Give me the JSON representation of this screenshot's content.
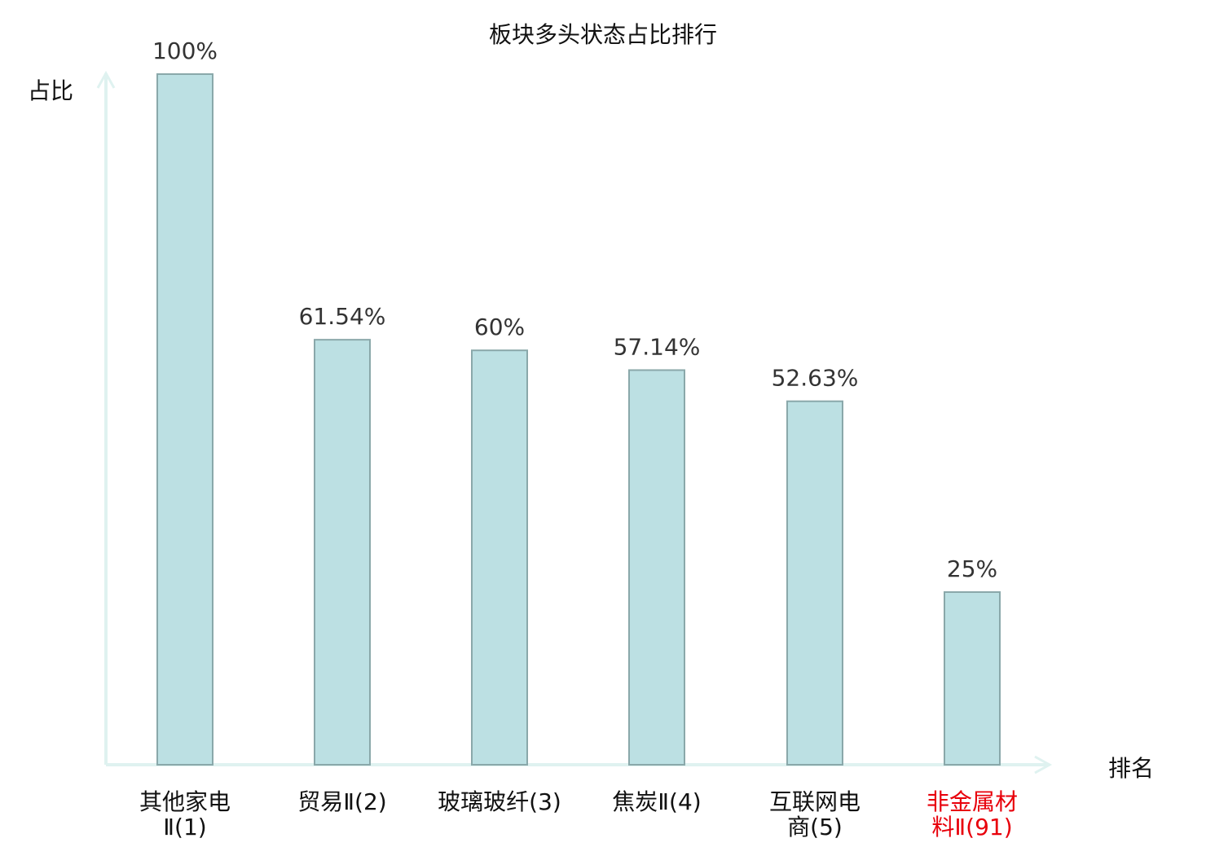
{
  "chart_data": {
    "type": "bar",
    "title": "板块多头状态占比排行",
    "xlabel": "排名",
    "ylabel": "占比",
    "ylim": [
      0,
      100
    ],
    "grid": false,
    "categories": [
      {
        "lines": [
          "其他家电",
          "Ⅱ(1)"
        ],
        "highlight": false
      },
      {
        "lines": [
          "贸易Ⅱ(2)"
        ],
        "highlight": false
      },
      {
        "lines": [
          "玻璃玻纤(3)"
        ],
        "highlight": false
      },
      {
        "lines": [
          "焦炭Ⅱ(4)"
        ],
        "highlight": false
      },
      {
        "lines": [
          "互联网电",
          "商(5)"
        ],
        "highlight": false
      },
      {
        "lines": [
          "非金属材",
          "料Ⅱ(91)"
        ],
        "highlight": true
      }
    ],
    "values": [
      100,
      61.54,
      60,
      57.14,
      52.63,
      25
    ],
    "value_labels": [
      "100%",
      "61.54%",
      "60%",
      "57.14%",
      "52.63%",
      "25%"
    ],
    "colors": {
      "bar": "#bce0e3",
      "bar_edge": "#8aa8aa",
      "axis": "#dff2f0",
      "highlight": "#e8000b",
      "text": "#222222"
    }
  }
}
